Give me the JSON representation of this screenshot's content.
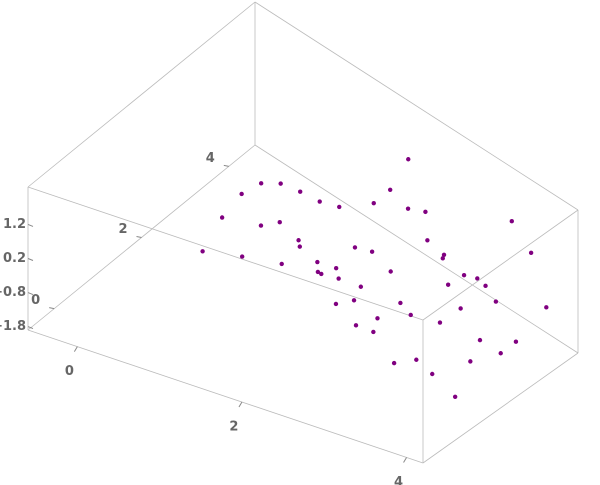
{
  "chart_data": {
    "type": "scatter3d",
    "color": "#800080",
    "x": [
      1,
      1,
      1,
      1,
      1,
      1,
      1,
      1,
      1.5,
      1.5,
      1.5,
      1.5,
      1.5,
      1.5,
      1.5,
      1.5,
      2,
      2,
      2,
      2,
      2,
      2,
      2,
      2,
      2.5,
      2.5,
      2.5,
      2.5,
      2.5,
      2.5,
      2.5,
      2.5,
      3,
      3,
      3,
      3,
      3,
      3,
      3,
      3,
      3.5,
      3.5,
      3.5,
      3.5,
      3.5,
      3.5,
      3.5,
      3.5,
      4,
      4,
      4,
      4,
      4,
      4,
      4,
      4
    ],
    "y": [
      0.5,
      1,
      1.5,
      2,
      2.5,
      3,
      3.5,
      4,
      0.5,
      1,
      1.5,
      2,
      2.5,
      3,
      3.5,
      4,
      0.5,
      1,
      1.5,
      2,
      2.5,
      3,
      3.5,
      4,
      0.5,
      1,
      1.5,
      2,
      2.5,
      3,
      3.5,
      4,
      0.5,
      1,
      1.5,
      2,
      2.5,
      3,
      3.5,
      4,
      0.5,
      1,
      1.5,
      2,
      2.5,
      3,
      3.5,
      4,
      0.5,
      1,
      1.5,
      2,
      2.5,
      3,
      3.5,
      4
    ],
    "z": [
      0.72,
      1.26,
      1.5,
      1.36,
      0.9,
      0.21,
      -0.53,
      -1.14,
      1.02,
      1.5,
      1.17,
      0.21,
      -0.86,
      -1.47,
      -1.29,
      -0.42,
      1.26,
      1.36,
      0.21,
      -1.14,
      -1.44,
      -0.42,
      0.99,
      1.48,
      1.42,
      0.9,
      -0.86,
      -1.44,
      -0.05,
      1.41,
      0.93,
      -0.82,
      1.5,
      0.21,
      -1.47,
      -0.42,
      1.41,
      0.62,
      -1.32,
      -0.8,
      1.48,
      -0.53,
      -1.29,
      0.99,
      0.93,
      -1.32,
      -0.53,
      1.49,
      1.36,
      -1.14,
      -0.42,
      1.48,
      -0.82,
      -0.8,
      1.49,
      -0.43
    ],
    "xlim": [
      -0.6,
      4.2
    ],
    "ylim": [
      -0.6,
      4.6
    ],
    "zlim": [
      -1.9,
      2.3
    ],
    "xticks": [
      0,
      2,
      4
    ],
    "yticks": [
      0,
      2,
      4
    ],
    "zticks": [
      {
        "value": -1.8,
        "label": "−1.8"
      },
      {
        "value": -0.8,
        "label": "−0.8"
      },
      0.2,
      1.2
    ]
  }
}
